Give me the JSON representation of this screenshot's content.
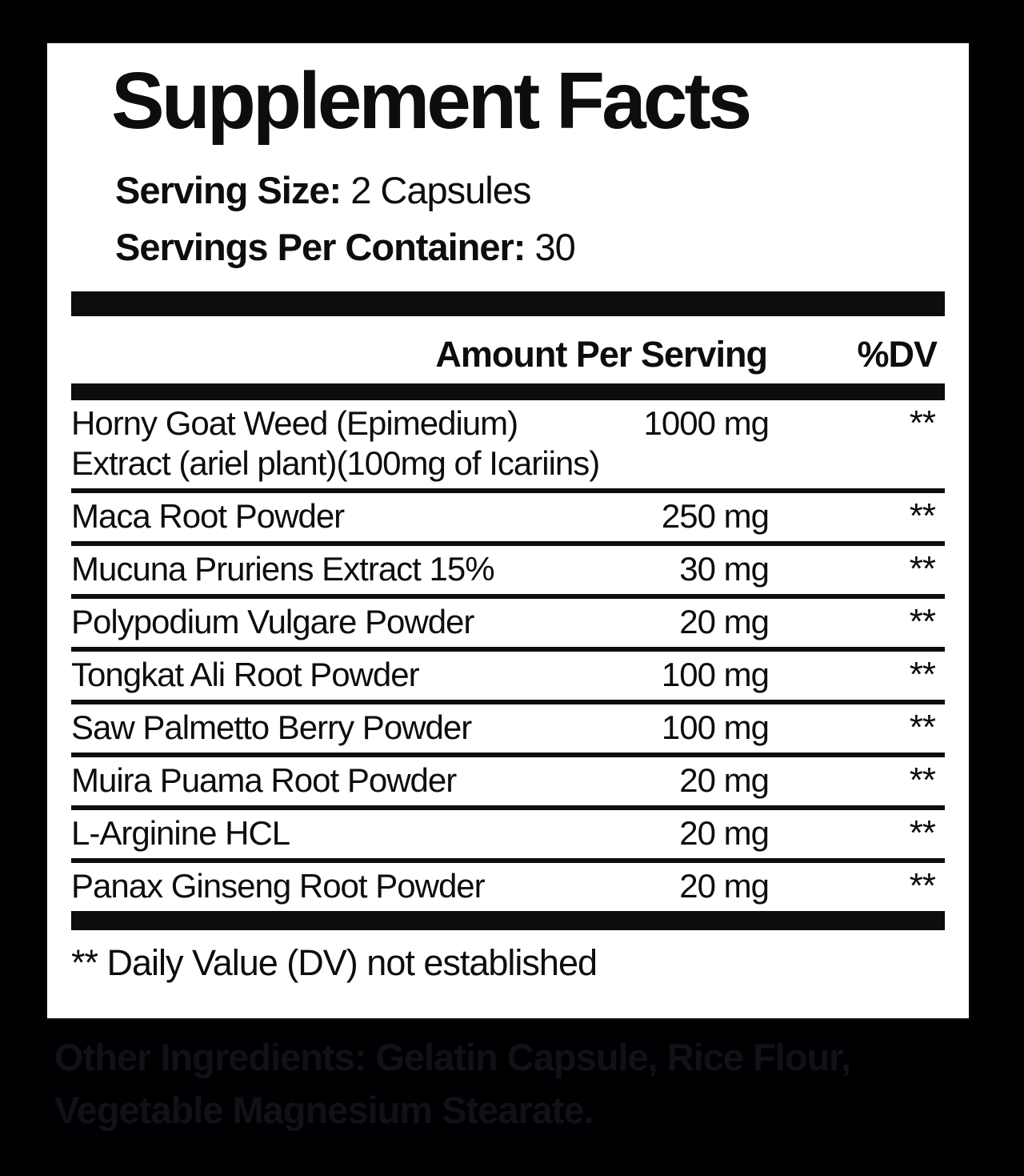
{
  "label": {
    "title": "Supplement Facts",
    "serving_size_label": "Serving Size:",
    "serving_size_value": "2 Capsules",
    "servings_per_container_label": "Servings Per Container:",
    "servings_per_container_value": "30",
    "header": {
      "amount": "Amount Per Serving",
      "dv": "%DV"
    },
    "rows": [
      {
        "name": "Horny Goat Weed (Epimedium)",
        "name_line2": "Extract (ariel plant)(100mg of Icariins)",
        "amount": "1000 mg",
        "dv": "**"
      },
      {
        "name": "Maca Root Powder",
        "amount": "250 mg",
        "dv": "**"
      },
      {
        "name": "Mucuna Pruriens Extract 15%",
        "amount": "30 mg",
        "dv": "**"
      },
      {
        "name": "Polypodium Vulgare Powder",
        "amount": "20 mg",
        "dv": "**"
      },
      {
        "name": "Tongkat Ali Root Powder",
        "amount": "100 mg",
        "dv": "**"
      },
      {
        "name": "Saw Palmetto Berry Powder",
        "amount": "100 mg",
        "dv": "**"
      },
      {
        "name": "Muira Puama Root Powder",
        "amount": "20 mg",
        "dv": "**"
      },
      {
        "name": "L-Arginine HCL",
        "amount": "20 mg",
        "dv": "**"
      },
      {
        "name": "Panax Ginseng Root Powder",
        "amount": "20 mg",
        "dv": "**"
      }
    ],
    "footnote": "** Daily Value (DV) not established"
  },
  "other_ingredients": {
    "lines": [
      "Other Ingredients: Gelatin Capsule, Rice Flour,",
      "Vegetable Magnesium Stearate."
    ]
  },
  "colors": {
    "background": "#000003",
    "panel": "#ffffff",
    "text": "#0d0d0d",
    "other_ingredients_text": "#111116"
  }
}
